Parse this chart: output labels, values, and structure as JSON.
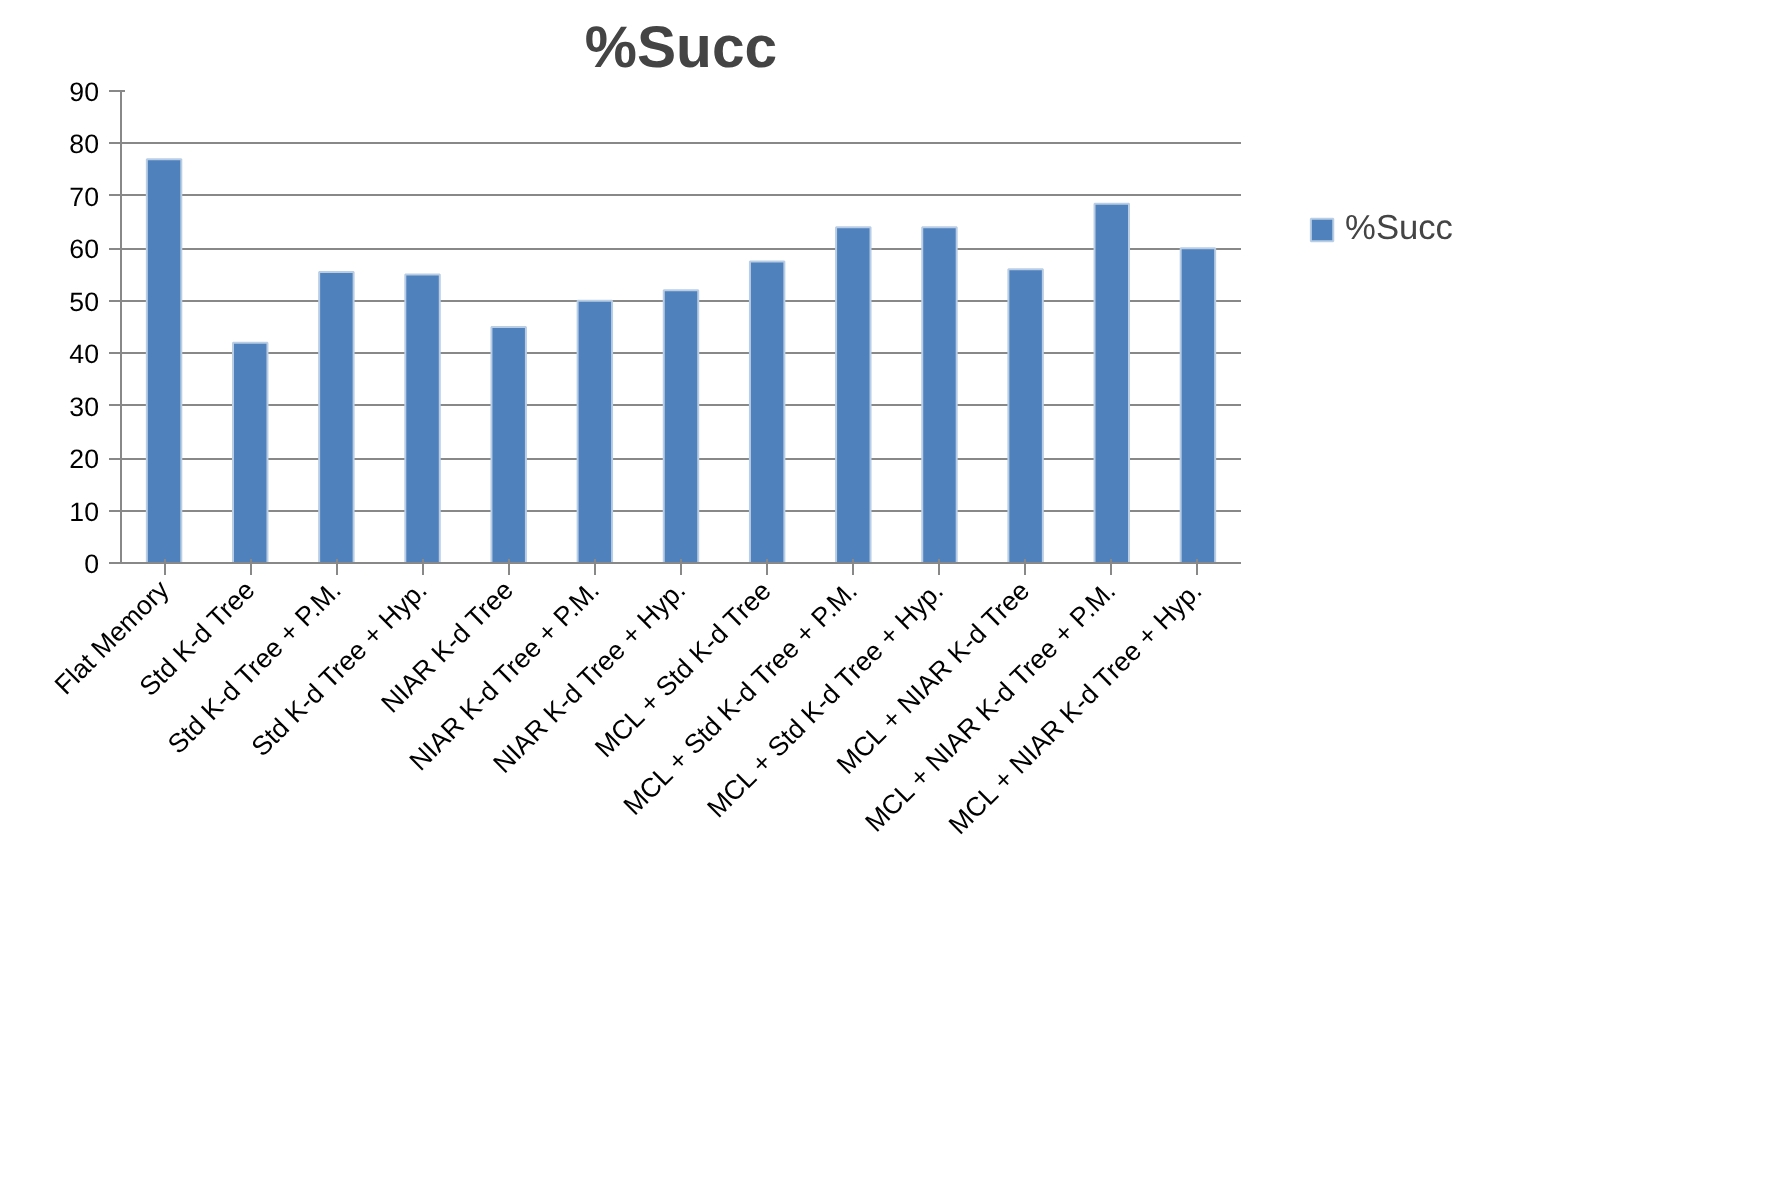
{
  "chart_data": {
    "type": "bar",
    "title": "%Succ",
    "categories": [
      "Flat Memory",
      "Std K-d Tree",
      "Std K-d Tree + P.M.",
      "Std K-d Tree + Hyp.",
      "NIAR K-d Tree",
      "NIAR K-d Tree + P.M.",
      "NIAR K-d Tree + Hyp.",
      "MCL + Std K-d Tree",
      "MCL + Std K-d Tree + P.M.",
      "MCL + Std K-d Tree + Hyp.",
      "MCL + NIAR K-d Tree",
      "MCL + NIAR K-d Tree + P.M.",
      "MCL + NIAR K-d Tree + Hyp."
    ],
    "series": [
      {
        "name": "%Succ",
        "color": "#4f81bd",
        "values": [
          77,
          42,
          55.5,
          55,
          45,
          50,
          52,
          57.5,
          64,
          64,
          56,
          68.5,
          60
        ]
      }
    ],
    "ylim": [
      0,
      90
    ],
    "yticks": [
      0,
      10,
      20,
      30,
      40,
      50,
      60,
      70,
      80,
      90
    ],
    "grid": "y",
    "legend": "right"
  }
}
